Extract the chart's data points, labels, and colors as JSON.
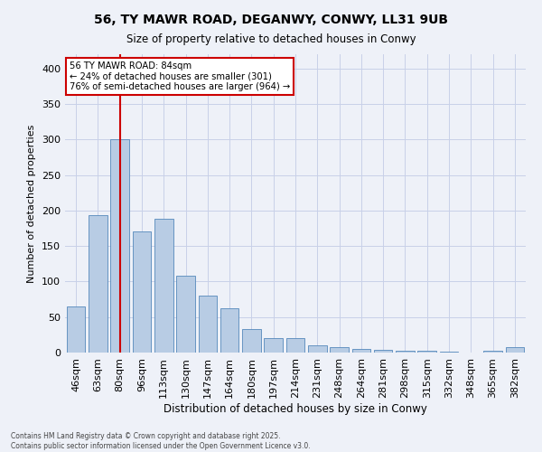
{
  "title_line1": "56, TY MAWR ROAD, DEGANWY, CONWY, LL31 9UB",
  "title_line2": "Size of property relative to detached houses in Conwy",
  "xlabel": "Distribution of detached houses by size in Conwy",
  "ylabel": "Number of detached properties",
  "categories": [
    "46sqm",
    "63sqm",
    "80sqm",
    "96sqm",
    "113sqm",
    "130sqm",
    "147sqm",
    "164sqm",
    "180sqm",
    "197sqm",
    "214sqm",
    "231sqm",
    "248sqm",
    "264sqm",
    "281sqm",
    "298sqm",
    "315sqm",
    "332sqm",
    "348sqm",
    "365sqm",
    "382sqm"
  ],
  "values": [
    65,
    193,
    300,
    170,
    188,
    108,
    80,
    63,
    33,
    20,
    20,
    10,
    8,
    5,
    4,
    3,
    2,
    1,
    0,
    2,
    8
  ],
  "bar_color": "#b8cce4",
  "bar_edge_color": "#5588bb",
  "grid_color": "#c8d0e8",
  "background_color": "#eef1f8",
  "vline_x_index": 2,
  "vline_color": "#cc0000",
  "annotation_text": "56 TY MAWR ROAD: 84sqm\n← 24% of detached houses are smaller (301)\n76% of semi-detached houses are larger (964) →",
  "annotation_box_color": "#ffffff",
  "annotation_box_edge": "#cc0000",
  "footer_line1": "Contains HM Land Registry data © Crown copyright and database right 2025.",
  "footer_line2": "Contains public sector information licensed under the Open Government Licence v3.0.",
  "ylim": [
    0,
    420
  ],
  "yticks": [
    0,
    50,
    100,
    150,
    200,
    250,
    300,
    350,
    400
  ]
}
